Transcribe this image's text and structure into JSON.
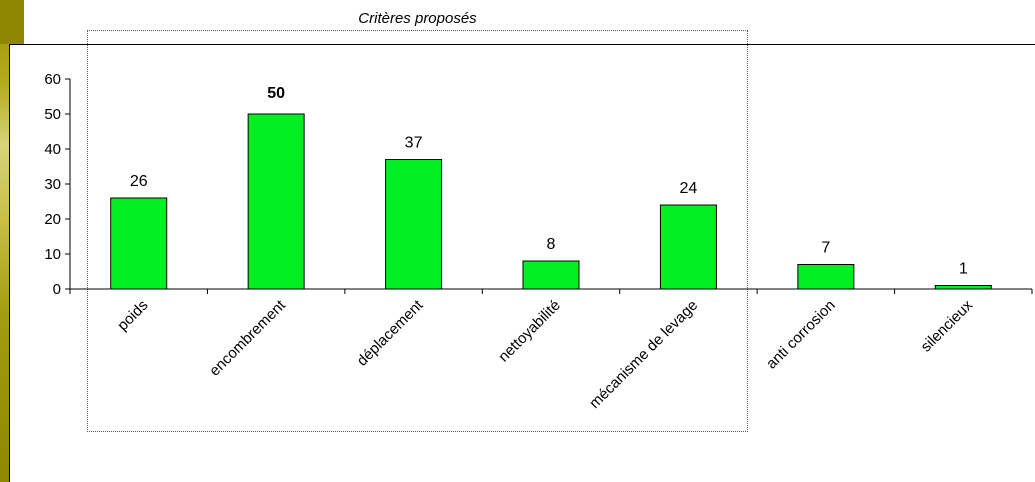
{
  "chart_data": {
    "type": "bar",
    "title": "Critères proposés",
    "categories": [
      "poids",
      "encombrement",
      "déplacement",
      "nettoyabilité",
      "mécanisme de levage",
      "anti corrosion",
      "silencieux"
    ],
    "values": [
      26,
      50,
      37,
      8,
      24,
      7,
      1
    ],
    "ylim": [
      0,
      60
    ],
    "yticks": [
      0,
      10,
      20,
      30,
      40,
      50,
      60
    ],
    "highlight_index": 1,
    "colors": {
      "bar": "#00ee22",
      "highlight_label": "#22dd22",
      "axis": "#000000"
    }
  }
}
